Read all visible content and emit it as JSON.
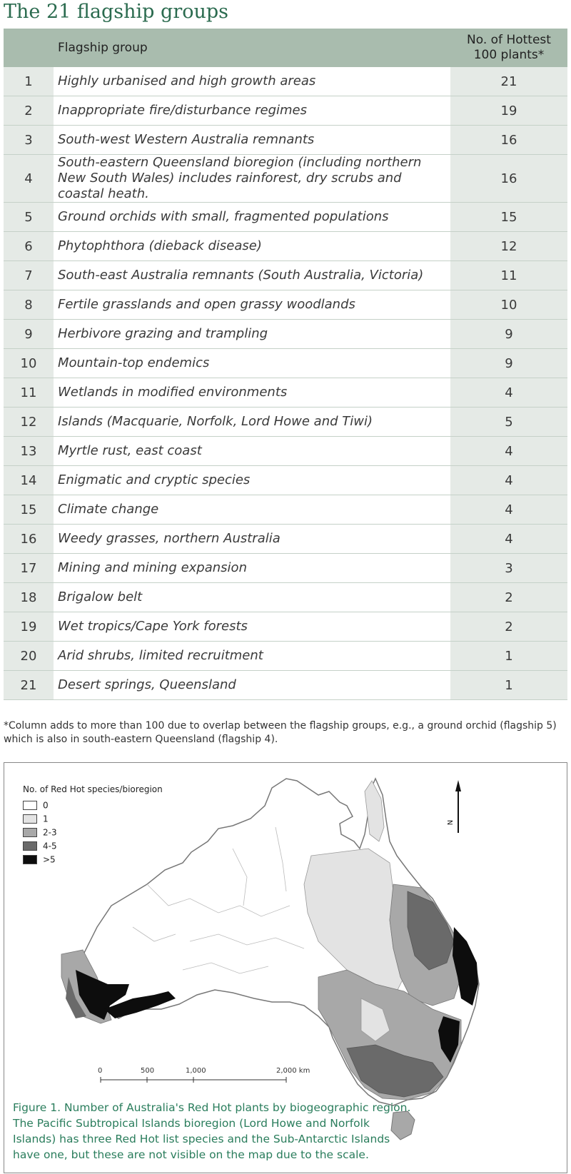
{
  "title": "The 21 flagship groups",
  "table": {
    "header_group": "Flagship group",
    "header_count_line1": "No. of Hottest",
    "header_count_line2": "100 plants*",
    "rows": [
      {
        "num": "1",
        "group": "Highly urbanised and high growth areas",
        "count": "21"
      },
      {
        "num": "2",
        "group": "Inappropriate fire/disturbance regimes",
        "count": "19"
      },
      {
        "num": "3",
        "group": "South-west Western Australia remnants",
        "count": "16"
      },
      {
        "num": "4",
        "group": "South-eastern Queensland bioregion (including northern New South Wales) includes rainforest, dry scrubs and coastal heath.",
        "count": "16"
      },
      {
        "num": "5",
        "group": "Ground orchids with small, fragmented populations",
        "count": "15"
      },
      {
        "num": "6",
        "group": "Phytophthora (dieback disease)",
        "count": "12"
      },
      {
        "num": "7",
        "group": "South-east Australia remnants (South Australia, Victoria)",
        "count": "11"
      },
      {
        "num": "8",
        "group": "Fertile grasslands and open grassy woodlands",
        "count": "10"
      },
      {
        "num": "9",
        "group": "Herbivore grazing and trampling",
        "count": "9"
      },
      {
        "num": "10",
        "group": "Mountain-top endemics",
        "count": "9"
      },
      {
        "num": "11",
        "group": "Wetlands in modified environments",
        "count": "4"
      },
      {
        "num": "12",
        "group": "Islands (Macquarie, Norfolk, Lord Howe and Tiwi)",
        "count": "5"
      },
      {
        "num": "13",
        "group": "Myrtle rust, east coast",
        "count": "4"
      },
      {
        "num": "14",
        "group": "Enigmatic and cryptic species",
        "count": "4"
      },
      {
        "num": "15",
        "group": "Climate change",
        "count": "4"
      },
      {
        "num": "16",
        "group": "Weedy grasses, northern Australia",
        "count": "4"
      },
      {
        "num": "17",
        "group": "Mining and mining expansion",
        "count": "3"
      },
      {
        "num": "18",
        "group": "Brigalow belt",
        "count": "2"
      },
      {
        "num": "19",
        "group": "Wet tropics/Cape York forests",
        "count": "2"
      },
      {
        "num": "20",
        "group": "Arid shrubs, limited recruitment",
        "count": "1"
      },
      {
        "num": "21",
        "group": "Desert springs, Queensland",
        "count": "1"
      }
    ]
  },
  "footnote": "*Column adds to more than 100 due to overlap between the flagship groups, e.g., a ground orchid (flagship 5) which is also in south-eastern Queensland (flagship 4).",
  "map": {
    "legend_title": "No. of Red Hot species/bioregion",
    "legend": [
      {
        "label": "0",
        "color": "#ffffff"
      },
      {
        "label": "1",
        "color": "#e3e3e3"
      },
      {
        "label": "2-3",
        "color": "#a8a8a8"
      },
      {
        "label": "4-5",
        "color": "#6a6a6a"
      },
      {
        "label": ">5",
        "color": "#0d0d0d"
      }
    ],
    "north_label": "N",
    "scale_labels": [
      "0",
      "500",
      "1,000",
      "2,000 km"
    ],
    "caption": "Figure 1. Number of Australia's Red Hot plants by biogeographic region. The Pacific Subtropical Islands bioregion (Lord Howe and Norfolk Islands) has three Red Hot list species and the Sub-Antarctic Islands have one, but these are not visible on the map due to the scale."
  }
}
